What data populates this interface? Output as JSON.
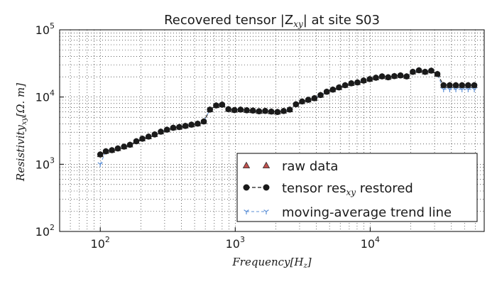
{
  "chart_data": {
    "type": "line",
    "title": "Recovered tensor |Z",
    "title_sub": "xy",
    "title_end": "| at site S03",
    "xlabel": "Frequency[H",
    "xlabel_sub": "z",
    "xlabel_end": "]",
    "ylabel": "Resistivity",
    "ylabel_sub": "xy",
    "ylabel_end": "[Ω. m]",
    "x_scale": "log",
    "y_scale": "log",
    "xlim": [
      50,
      70000
    ],
    "ylim": [
      100,
      100000
    ],
    "x_ticks": [
      {
        "value": 100,
        "base": "10",
        "exp": "2"
      },
      {
        "value": 1000,
        "base": "10",
        "exp": "3"
      },
      {
        "value": 10000,
        "base": "10",
        "exp": "4"
      }
    ],
    "y_ticks": [
      {
        "value": 100,
        "base": "10",
        "exp": "2"
      },
      {
        "value": 1000,
        "base": "10",
        "exp": "3"
      },
      {
        "value": 10000,
        "base": "10",
        "exp": "4"
      },
      {
        "value": 100000,
        "base": "10",
        "exp": "5"
      }
    ],
    "grid": true,
    "legend_position": "lower-right",
    "x": [
      100,
      110,
      122,
      135,
      150,
      166,
      185,
      205,
      228,
      253,
      281,
      312,
      347,
      385,
      427,
      474,
      527,
      585,
      650,
      722,
      800,
      890,
      987,
      1096,
      1218,
      1352,
      1502,
      1668,
      1852,
      2057,
      2285,
      2537,
      2818,
      3130,
      3476,
      3861,
      4288,
      4762,
      5289,
      5874,
      6524,
      7246,
      8048,
      8938,
      9927,
      11026,
      12246,
      13601,
      15106,
      16777,
      18634,
      20696,
      22985,
      25528,
      28353,
      31490,
      34975,
      38845,
      43143,
      47917,
      53219,
      59108
    ],
    "series": [
      {
        "name": "raw data",
        "color": "#c0504d",
        "marker": "triangle",
        "values": [
          1400,
          1560,
          1620,
          1720,
          1830,
          1950,
          2200,
          2400,
          2580,
          2780,
          3050,
          3270,
          3490,
          3580,
          3720,
          3880,
          4020,
          4330,
          6500,
          7500,
          7700,
          6600,
          6400,
          6500,
          6350,
          6300,
          6150,
          6220,
          6080,
          6000,
          6200,
          6500,
          7800,
          8600,
          9100,
          9600,
          10700,
          12000,
          12900,
          13900,
          15000,
          16000,
          16500,
          17600,
          18500,
          19400,
          20300,
          19700,
          20500,
          21000,
          20300,
          23700,
          25000,
          23700,
          24700,
          22000,
          15000,
          15000,
          15000,
          15000,
          15000,
          15000
        ]
      },
      {
        "name": "tensor res",
        "name_sub": "xy",
        "name_end": " restored",
        "color": "#1a1a1a",
        "marker": "circle",
        "values": [
          1400,
          1560,
          1620,
          1720,
          1830,
          1950,
          2200,
          2400,
          2580,
          2780,
          3050,
          3270,
          3490,
          3580,
          3720,
          3880,
          4020,
          4330,
          6500,
          7500,
          7700,
          6600,
          6400,
          6500,
          6350,
          6300,
          6150,
          6220,
          6080,
          6000,
          6200,
          6500,
          7800,
          8600,
          9100,
          9600,
          10700,
          12000,
          12900,
          13900,
          15000,
          16000,
          16500,
          17600,
          18500,
          19400,
          20300,
          19700,
          20500,
          21000,
          20300,
          23700,
          25000,
          23700,
          24700,
          22000,
          15000,
          15000,
          15000,
          15000,
          15000,
          15000
        ]
      },
      {
        "name": "moving-average trend line",
        "color": "#5b8fd6",
        "marker": "tri_down",
        "values": [
          1000,
          1560,
          1620,
          1720,
          1830,
          1950,
          2200,
          2400,
          2580,
          2780,
          3050,
          3270,
          3490,
          3580,
          3720,
          3880,
          4020,
          4330,
          6500,
          7500,
          7700,
          6600,
          6400,
          6500,
          6350,
          6300,
          6150,
          6220,
          6080,
          6000,
          6200,
          6500,
          7800,
          8600,
          9100,
          9600,
          10700,
          12000,
          12900,
          13900,
          15000,
          16000,
          16500,
          17600,
          18500,
          19400,
          20300,
          19700,
          20500,
          21000,
          20300,
          23700,
          25000,
          23700,
          24700,
          22000,
          13000,
          13000,
          13000,
          13000,
          13000,
          13000
        ]
      }
    ]
  }
}
